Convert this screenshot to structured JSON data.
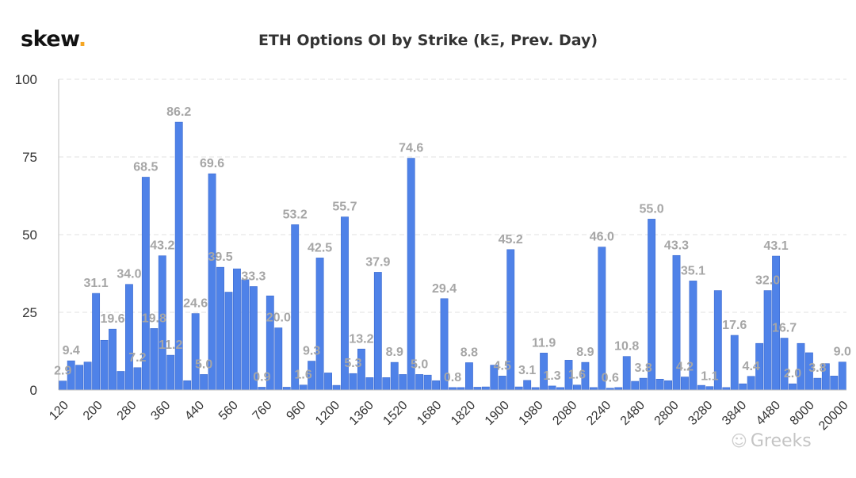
{
  "brand": {
    "name": "skew",
    "dot": "."
  },
  "watermark": {
    "icon": "wechat-icon",
    "text": "Greeks"
  },
  "colors": {
    "bar": "#4f82e8",
    "bar_edge": "#3c6bd0",
    "label": "#a6a6a6",
    "grid": "#e2e2e2"
  },
  "chart_data": {
    "type": "bar",
    "title": "ETH Options OI by Strike (kΞ, Prev. Day)",
    "xlabel": "",
    "ylabel": "",
    "ylim": [
      0,
      100
    ],
    "yticks": [
      0,
      25,
      50,
      75,
      100
    ],
    "grid": true,
    "xtick_labels": [
      "120",
      "200",
      "280",
      "360",
      "440",
      "560",
      "760",
      "960",
      "1200",
      "1360",
      "1520",
      "1680",
      "1820",
      "1900",
      "1980",
      "2080",
      "2240",
      "2480",
      "2800",
      "3280",
      "3840",
      "4480",
      "8000",
      "20000"
    ],
    "values": [
      2.9,
      9.4,
      8.0,
      9.0,
      31.1,
      16.0,
      19.6,
      6.0,
      34.0,
      7.2,
      68.5,
      19.8,
      43.2,
      11.2,
      86.2,
      3.0,
      24.6,
      5.0,
      69.6,
      39.5,
      31.5,
      39.0,
      35.5,
      33.3,
      0.9,
      30.3,
      20.0,
      0.9,
      53.2,
      1.6,
      9.3,
      42.5,
      5.5,
      1.5,
      55.7,
      5.3,
      13.2,
      4.0,
      37.9,
      4.0,
      8.9,
      5.0,
      74.6,
      5.0,
      4.8,
      3.0,
      29.4,
      0.8,
      0.8,
      8.8,
      0.9,
      1.0,
      8.0,
      4.5,
      45.2,
      1.0,
      3.1,
      0.8,
      11.9,
      1.3,
      0.8,
      9.6,
      1.6,
      8.9,
      0.8,
      46.0,
      0.6,
      0.8,
      10.8,
      2.8,
      3.8,
      55.0,
      3.5,
      3.0,
      43.3,
      4.2,
      35.1,
      1.5,
      1.1,
      32.0,
      0.8,
      17.6,
      2.0,
      4.4,
      15.0,
      32.0,
      43.1,
      16.7,
      2.0,
      15.0,
      12.0,
      3.8,
      8.5,
      4.5,
      9.0
    ],
    "data_labels": [
      {
        "i": 0,
        "text": "2.9"
      },
      {
        "i": 1,
        "text": "9.4"
      },
      {
        "i": 4,
        "text": "31.1"
      },
      {
        "i": 6,
        "text": "19.6"
      },
      {
        "i": 8,
        "text": "34.0"
      },
      {
        "i": 9,
        "text": "7.2"
      },
      {
        "i": 10,
        "text": "68.5"
      },
      {
        "i": 11,
        "text": "19.8"
      },
      {
        "i": 12,
        "text": "43.2"
      },
      {
        "i": 13,
        "text": "11.2"
      },
      {
        "i": 14,
        "text": "86.2"
      },
      {
        "i": 16,
        "text": "24.6"
      },
      {
        "i": 17,
        "text": "5.0"
      },
      {
        "i": 18,
        "text": "69.6"
      },
      {
        "i": 19,
        "text": "39.5"
      },
      {
        "i": 23,
        "text": "33.3"
      },
      {
        "i": 24,
        "text": "0.9"
      },
      {
        "i": 26,
        "text": "20.0"
      },
      {
        "i": 28,
        "text": "53.2"
      },
      {
        "i": 29,
        "text": "1.6"
      },
      {
        "i": 30,
        "text": "9.3"
      },
      {
        "i": 31,
        "text": "42.5"
      },
      {
        "i": 34,
        "text": "55.7"
      },
      {
        "i": 35,
        "text": "5.3"
      },
      {
        "i": 36,
        "text": "13.2"
      },
      {
        "i": 38,
        "text": "37.9"
      },
      {
        "i": 40,
        "text": "8.9"
      },
      {
        "i": 42,
        "text": "74.6"
      },
      {
        "i": 43,
        "text": "5.0"
      },
      {
        "i": 46,
        "text": "29.4"
      },
      {
        "i": 47,
        "text": "0.8"
      },
      {
        "i": 49,
        "text": "8.8"
      },
      {
        "i": 53,
        "text": "4.5"
      },
      {
        "i": 54,
        "text": "45.2"
      },
      {
        "i": 56,
        "text": "3.1"
      },
      {
        "i": 58,
        "text": "11.9"
      },
      {
        "i": 59,
        "text": "1.3"
      },
      {
        "i": 62,
        "text": "1.6"
      },
      {
        "i": 63,
        "text": "8.9"
      },
      {
        "i": 65,
        "text": "46.0"
      },
      {
        "i": 66,
        "text": "0.6"
      },
      {
        "i": 68,
        "text": "10.8"
      },
      {
        "i": 70,
        "text": "3.8"
      },
      {
        "i": 71,
        "text": "55.0"
      },
      {
        "i": 74,
        "text": "43.3"
      },
      {
        "i": 75,
        "text": "4.2"
      },
      {
        "i": 76,
        "text": "35.1"
      },
      {
        "i": 78,
        "text": "1.1"
      },
      {
        "i": 81,
        "text": "17.6"
      },
      {
        "i": 83,
        "text": "4.4"
      },
      {
        "i": 85,
        "text": "32.0"
      },
      {
        "i": 86,
        "text": "43.1"
      },
      {
        "i": 87,
        "text": "16.7"
      },
      {
        "i": 88,
        "text": "2.0"
      },
      {
        "i": 91,
        "text": "3.8"
      },
      {
        "i": 94,
        "text": "9.0"
      }
    ]
  }
}
